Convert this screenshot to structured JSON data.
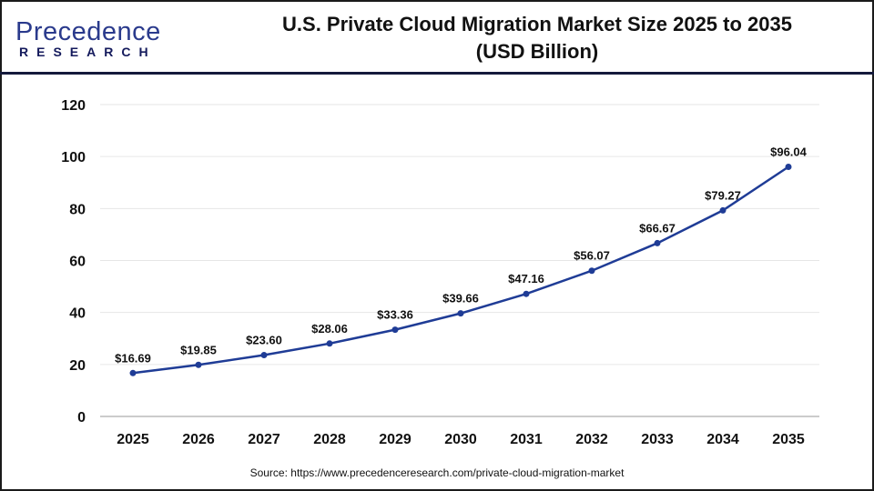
{
  "logo": {
    "main": "Precedence",
    "sub": "RESEARCH"
  },
  "title_line1": "U.S. Private Cloud Migration Market Size 2025 to 2035",
  "title_line2": "(USD Billion)",
  "source": "Source: https://www.precedenceresearch.com/private-cloud-migration-market",
  "chart_data": {
    "type": "line",
    "title": "U.S. Private Cloud Migration Market Size 2025 to 2035 (USD Billion)",
    "categories": [
      "2025",
      "2026",
      "2027",
      "2028",
      "2029",
      "2030",
      "2031",
      "2032",
      "2033",
      "2034",
      "2035"
    ],
    "values": [
      16.69,
      19.85,
      23.6,
      28.06,
      33.36,
      39.66,
      47.16,
      56.07,
      66.67,
      79.27,
      96.04
    ],
    "labels": [
      "$16.69",
      "$19.85",
      "$23.60",
      "$28.06",
      "$33.36",
      "$39.66",
      "$47.16",
      "$56.07",
      "$66.67",
      "$79.27",
      "$96.04"
    ],
    "yticks": [
      "0",
      "20",
      "40",
      "60",
      "80",
      "100",
      "120"
    ],
    "ylim": [
      0,
      120
    ],
    "grid": true,
    "color": "#1f3c96"
  }
}
